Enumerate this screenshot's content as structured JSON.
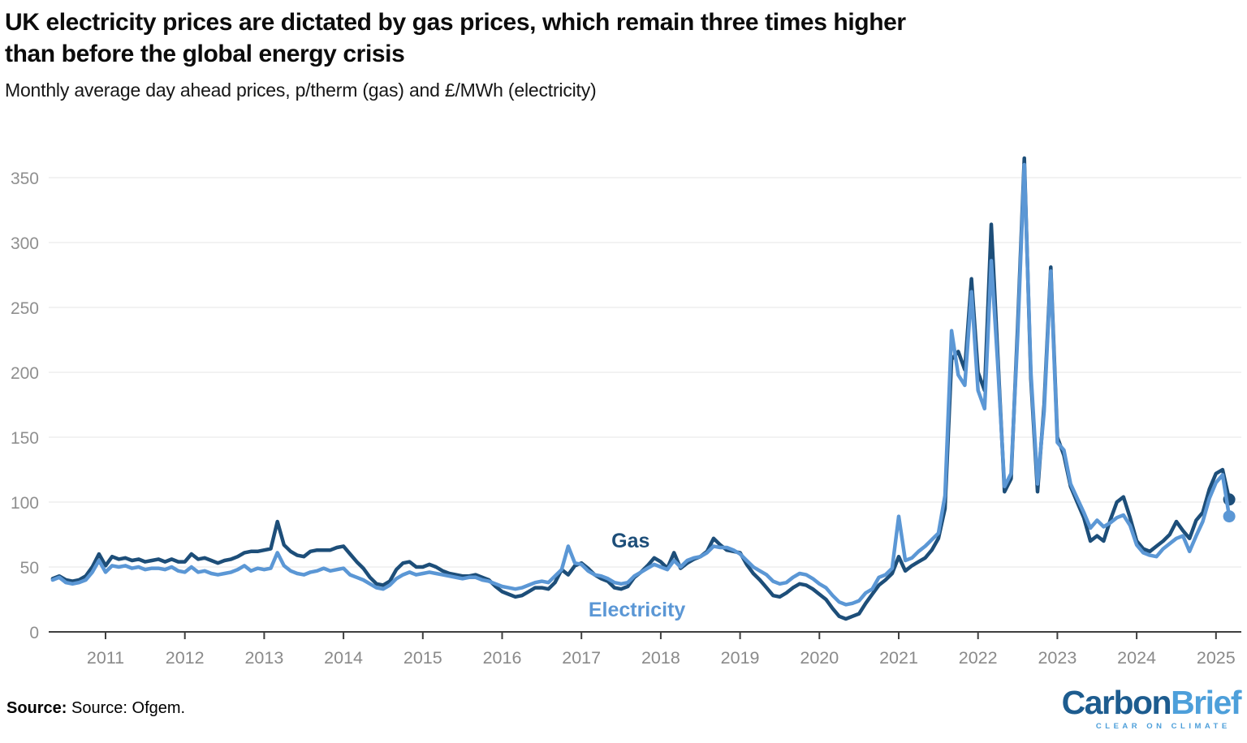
{
  "title_line1": "UK electricity prices are dictated by gas prices, which remain three times higher",
  "title_line2": "than before the global energy crisis",
  "subtitle": "Monthly average day ahead prices, p/therm (gas) and £/MWh (electricity)",
  "footer": {
    "source_label": "Source:",
    "source_text": " Source: Ofgem."
  },
  "logo": {
    "part1": "Carbon",
    "part2": "Brief",
    "tagline": "CLEAR ON CLIMATE",
    "dark_color": "#1d5c8f",
    "light_color": "#4d9fda"
  },
  "chart_data": {
    "type": "line",
    "frequency": "monthly",
    "start": {
      "year": 2010,
      "month_index": 4
    },
    "end_label": "March 2025",
    "x_ticks": [
      2011,
      2012,
      2013,
      2014,
      2015,
      2016,
      2017,
      2018,
      2019,
      2020,
      2021,
      2022,
      2023,
      2024,
      2025
    ],
    "y_ticks": [
      0,
      50,
      100,
      150,
      200,
      250,
      300,
      350
    ],
    "ylim": [
      0,
      375
    ],
    "grid": "horizontal",
    "axis_color": "#3f3f3f",
    "grid_color": "#e4e4e4",
    "tick_label_color": "#8f8f8f",
    "end_dot": true,
    "series": [
      {
        "name": "Gas",
        "color": "#1d4e79",
        "label_pos": {
          "year": 2017.62,
          "value": 70
        },
        "values": [
          41,
          43,
          40,
          39,
          40,
          43,
          50,
          60,
          51,
          58,
          56,
          57,
          55,
          56,
          54,
          55,
          56,
          54,
          56,
          54,
          54,
          60,
          56,
          57,
          55,
          53,
          55,
          56,
          58,
          61,
          62,
          62,
          63,
          64,
          85,
          67,
          62,
          59,
          58,
          62,
          63,
          63,
          63,
          65,
          66,
          60,
          54,
          49,
          42,
          37,
          36,
          39,
          48,
          53,
          54,
          50,
          50,
          52,
          50,
          47,
          45,
          44,
          43,
          43,
          44,
          42,
          40,
          35,
          31,
          29,
          27,
          28,
          31,
          34,
          34,
          33,
          38,
          48,
          44,
          51,
          53,
          49,
          44,
          41,
          39,
          34,
          33,
          35,
          42,
          46,
          51,
          57,
          54,
          49,
          61,
          49,
          53,
          56,
          58,
          62,
          72,
          67,
          63,
          62,
          61,
          52,
          45,
          40,
          34,
          28,
          27,
          30,
          34,
          37,
          36,
          33,
          29,
          25,
          18,
          12,
          10,
          12,
          14,
          22,
          29,
          36,
          40,
          45,
          58,
          47,
          51,
          54,
          57,
          63,
          72,
          95,
          210,
          216,
          202,
          272,
          200,
          186,
          314,
          212,
          108,
          118,
          235,
          365,
          195,
          108,
          175,
          281,
          150,
          136,
          112,
          100,
          88,
          70,
          74,
          70,
          86,
          100,
          104,
          88,
          70,
          64,
          62,
          66,
          70,
          75,
          85,
          78,
          72,
          86,
          92,
          110,
          122,
          125,
          102
        ]
      },
      {
        "name": "Electricity",
        "color": "#5b97d5",
        "label_pos": {
          "year": 2017.7,
          "value": 17
        },
        "values": [
          40,
          42,
          38,
          37,
          38,
          40,
          46,
          55,
          46,
          51,
          50,
          51,
          49,
          50,
          48,
          49,
          49,
          48,
          50,
          47,
          46,
          50,
          46,
          47,
          45,
          44,
          45,
          46,
          48,
          51,
          47,
          49,
          48,
          49,
          61,
          51,
          47,
          45,
          44,
          46,
          47,
          49,
          47,
          48,
          49,
          44,
          42,
          40,
          37,
          34,
          33,
          36,
          41,
          44,
          46,
          44,
          45,
          46,
          45,
          44,
          43,
          42,
          41,
          42,
          42,
          40,
          39,
          37,
          35,
          34,
          33,
          34,
          36,
          38,
          39,
          38,
          43,
          48,
          66,
          53,
          52,
          47,
          44,
          43,
          41,
          38,
          37,
          38,
          43,
          46,
          49,
          52,
          50,
          48,
          55,
          50,
          55,
          57,
          58,
          61,
          66,
          65,
          65,
          63,
          60,
          55,
          50,
          47,
          44,
          39,
          37,
          38,
          42,
          45,
          44,
          41,
          37,
          34,
          28,
          23,
          21,
          22,
          24,
          30,
          33,
          42,
          44,
          49,
          89,
          55,
          57,
          62,
          66,
          71,
          76,
          105,
          232,
          198,
          190,
          262,
          186,
          172,
          286,
          205,
          112,
          122,
          228,
          360,
          200,
          114,
          170,
          278,
          146,
          140,
          114,
          103,
          92,
          80,
          86,
          81,
          84,
          88,
          90,
          82,
          67,
          61,
          59,
          58,
          64,
          68,
          72,
          74,
          62,
          74,
          85,
          103,
          115,
          121,
          89
        ]
      }
    ]
  }
}
